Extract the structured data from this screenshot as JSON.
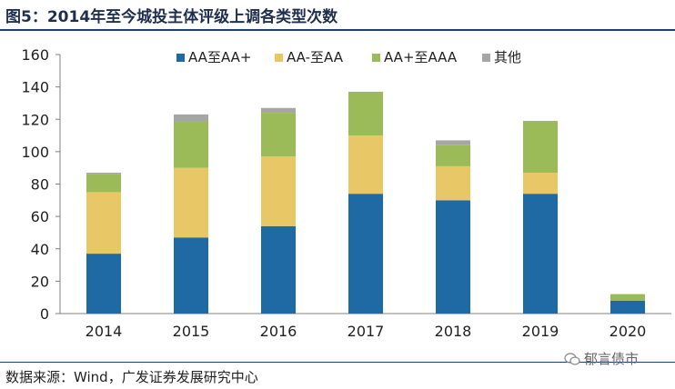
{
  "figure": {
    "title": "图5：2014年至今城投主体评级上调各类型次数",
    "source": "数据来源：Wind，广发证券发展研究中心",
    "watermark": "郁言债市",
    "watermark_icon": "wechat-icon"
  },
  "chart_data": {
    "type": "bar",
    "stacked": true,
    "title": "2014年至今城投主体评级上调各类型次数",
    "xlabel": "",
    "ylabel": "",
    "ylim": [
      0,
      160
    ],
    "yticks": [
      "0",
      "20",
      "40",
      "60",
      "80",
      "100",
      "120",
      "140",
      "160"
    ],
    "legend_position": "top",
    "grid": false,
    "categories": [
      "2014",
      "2015",
      "2016",
      "2017",
      "2018",
      "2019",
      "2020"
    ],
    "series": [
      {
        "name": "AA至AA+",
        "color": "#1f6aa5",
        "values": [
          37,
          47,
          54,
          74,
          70,
          74,
          8
        ]
      },
      {
        "name": "AA-至AA",
        "color": "#e8c766",
        "values": [
          38,
          43,
          43,
          36,
          21,
          13,
          0
        ]
      },
      {
        "name": "AA+至AAA",
        "color": "#9bbb59",
        "values": [
          11,
          29,
          27,
          27,
          13,
          32,
          4
        ]
      },
      {
        "name": "其他",
        "color": "#a6a6a6",
        "values": [
          1,
          4,
          3,
          0,
          3,
          0,
          0
        ]
      }
    ]
  }
}
